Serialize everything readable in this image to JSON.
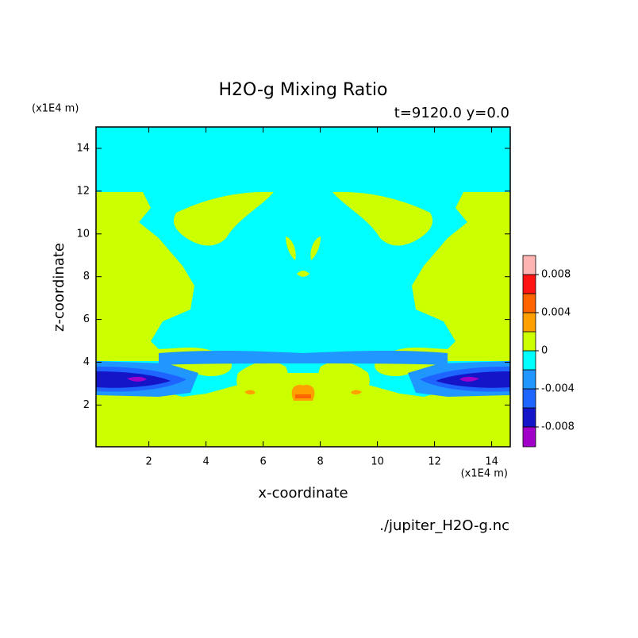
{
  "chart_data": {
    "type": "contour",
    "title": "H2O-g Mixing Ratio",
    "subtitle": "t=9120.0 y=0.0",
    "x_label": "x-coordinate",
    "y_label": "z-coordinate",
    "x_unit": "(x1E4 m)",
    "y_unit": "(x1E4 m)",
    "source": "./jupiter_H2O-g.nc",
    "xlim": [
      0.15,
      14.65
    ],
    "ylim": [
      0.05,
      15
    ],
    "xticks": [
      2,
      4,
      6,
      8,
      10,
      12,
      14
    ],
    "yticks": [
      2,
      4,
      6,
      8,
      10,
      12,
      14
    ],
    "colorbar": {
      "levels": [
        -0.008,
        -0.006,
        -0.004,
        -0.002,
        0,
        0.002,
        0.004,
        0.006,
        0.008
      ],
      "colors": [
        "#a000c8",
        "#1414c8",
        "#1e64ff",
        "#2096ff",
        "#00ffff",
        "#ccff00",
        "#ffa000",
        "#ff6400",
        "#ff1414",
        "#ffb4b4"
      ],
      "ticks": [
        -0.008,
        -0.004,
        0,
        0.004,
        0.008
      ]
    }
  }
}
